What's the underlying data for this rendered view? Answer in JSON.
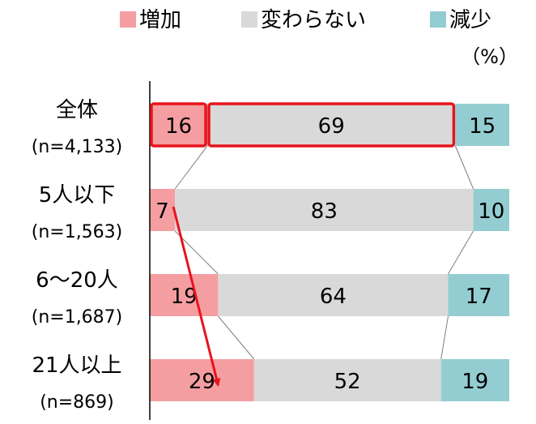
{
  "chart_data": {
    "type": "bar",
    "stacked": true,
    "orientation": "horizontal",
    "unit": "（%）",
    "legend_position": "top-right",
    "categories": [
      {
        "name": "全体",
        "n": "(n=4,133)"
      },
      {
        "name": "5人以下",
        "n": "(n=1,563)"
      },
      {
        "name": "6～20人",
        "n": "(n=1,687)"
      },
      {
        "name": "21人以上",
        "n": "(n=869)"
      }
    ],
    "series": [
      {
        "name": "増加",
        "color": "#f59ea2",
        "values": [
          16,
          7,
          19,
          29
        ]
      },
      {
        "name": "変わらない",
        "color": "#d9d9d9",
        "values": [
          69,
          83,
          64,
          52
        ]
      },
      {
        "name": "減少",
        "color": "#93cdd2",
        "values": [
          15,
          10,
          17,
          19
        ]
      }
    ],
    "xlim": [
      0,
      100
    ],
    "grid": false,
    "highlight": {
      "row": 0,
      "series": [
        0,
        1
      ],
      "color": "#e8141c"
    },
    "arrow": {
      "color": "#e8141c",
      "from_row": 1,
      "to_row": 3
    }
  }
}
